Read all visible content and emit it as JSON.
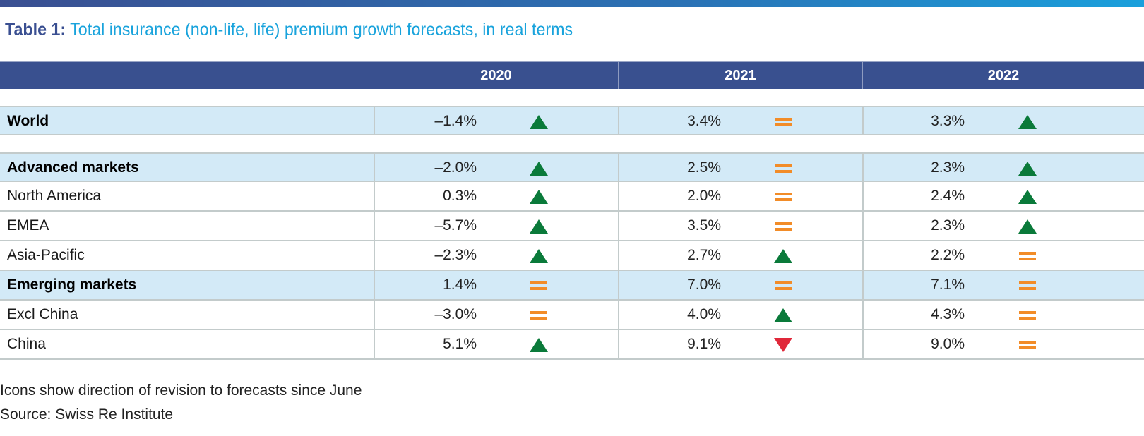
{
  "title": {
    "label": "Table 1:",
    "text": "Total insurance (non-life, life) premium growth forecasts, in real terms"
  },
  "colors": {
    "header": "#39508f",
    "highlight_row": "#d3eaf7",
    "up": "#0a7a3a",
    "down": "#e0283a",
    "same": "#f28c28"
  },
  "chart_data": {
    "type": "table",
    "columns": [
      "",
      "2020",
      "2021",
      "2022"
    ],
    "rows": [
      {
        "label": "World",
        "bold": true,
        "values": [
          "–1.4%",
          "3.4%",
          "3.3%"
        ],
        "revisions": [
          "up",
          "same",
          "up"
        ]
      },
      {
        "label": "Advanced markets",
        "bold": true,
        "values": [
          "–2.0%",
          "2.5%",
          "2.3%"
        ],
        "revisions": [
          "up",
          "same",
          "up"
        ]
      },
      {
        "label": "North America",
        "bold": false,
        "values": [
          "0.3%",
          "2.0%",
          "2.4%"
        ],
        "revisions": [
          "up",
          "same",
          "up"
        ]
      },
      {
        "label": "EMEA",
        "bold": false,
        "values": [
          "–5.7%",
          "3.5%",
          "2.3%"
        ],
        "revisions": [
          "up",
          "same",
          "up"
        ]
      },
      {
        "label": "Asia-Pacific",
        "bold": false,
        "values": [
          "–2.3%",
          "2.7%",
          "2.2%"
        ],
        "revisions": [
          "up",
          "up",
          "same"
        ]
      },
      {
        "label": "Emerging markets",
        "bold": true,
        "values": [
          "1.4%",
          "7.0%",
          "7.1%"
        ],
        "revisions": [
          "same",
          "same",
          "same"
        ]
      },
      {
        "label": "Excl China",
        "bold": false,
        "values": [
          "–3.0%",
          "4.0%",
          "4.3%"
        ],
        "revisions": [
          "same",
          "up",
          "same"
        ]
      },
      {
        "label": "China",
        "bold": false,
        "values": [
          "5.1%",
          "9.1%",
          "9.0%"
        ],
        "revisions": [
          "up",
          "down",
          "same"
        ]
      }
    ]
  },
  "footnotes": [
    "Icons show direction of revision to forecasts since June",
    "Source: Swiss Re Institute"
  ]
}
